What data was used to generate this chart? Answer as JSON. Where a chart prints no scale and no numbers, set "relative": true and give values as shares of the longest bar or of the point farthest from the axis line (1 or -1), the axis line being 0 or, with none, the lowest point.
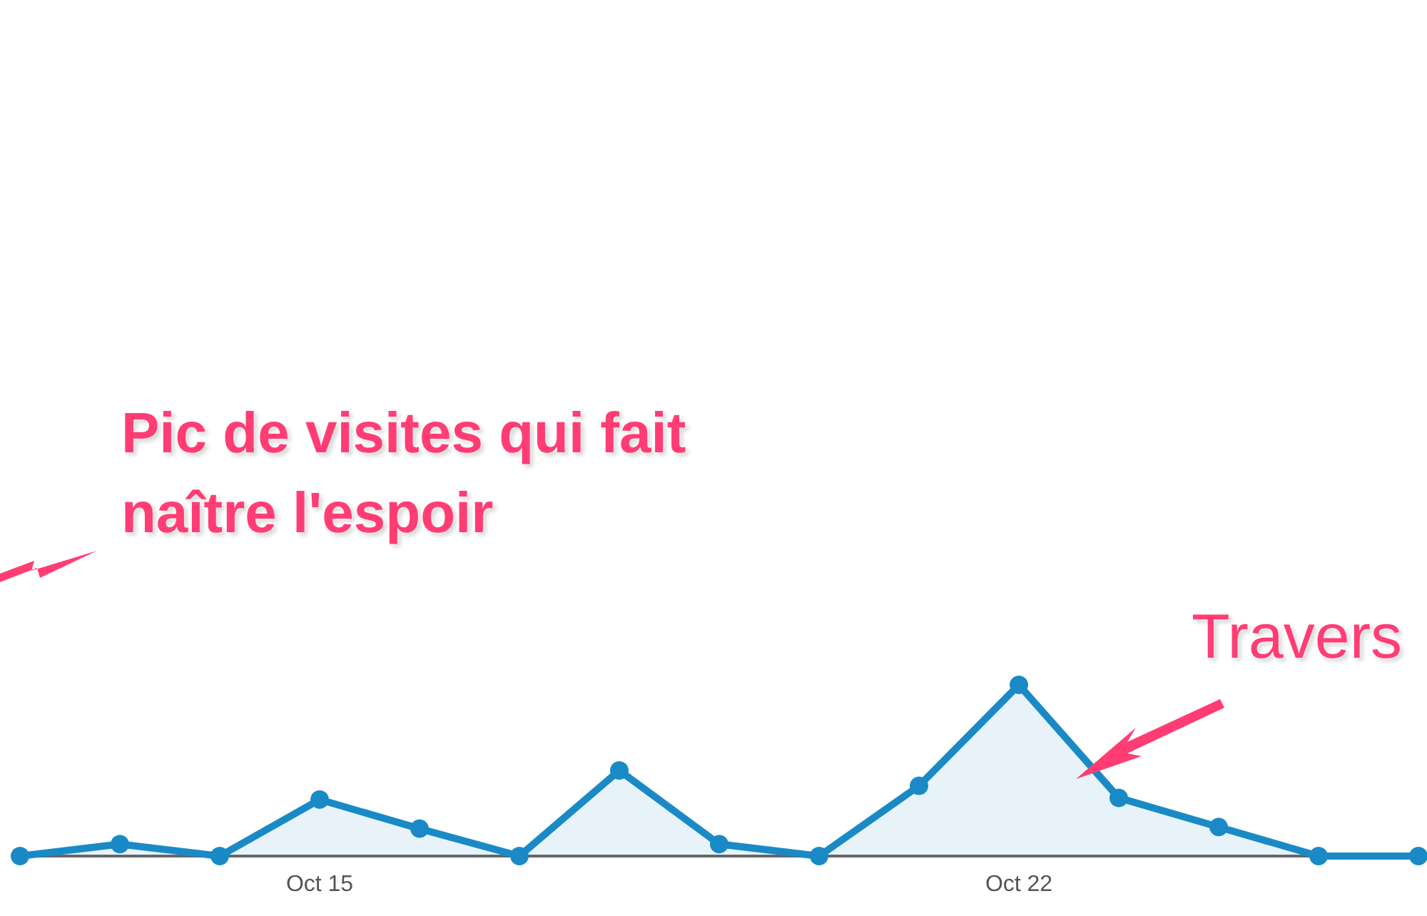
{
  "chart_data": {
    "type": "area",
    "relative": true,
    "marker": "circle",
    "categories": [
      null,
      null,
      null,
      "Oct 15",
      null,
      null,
      null,
      null,
      null,
      null,
      "Oct 22",
      null,
      null,
      null,
      null
    ],
    "series": [
      {
        "color": "#1a8ac6",
        "values": [
          0,
          0.07,
          0,
          0.33,
          0.16,
          0,
          0.5,
          0.07,
          0,
          0.41,
          1,
          0.34,
          0.17,
          0,
          0
        ]
      }
    ],
    "annotations": [
      "Pic de visites qui fait\nnaître l'espoir",
      "Travers"
    ]
  }
}
